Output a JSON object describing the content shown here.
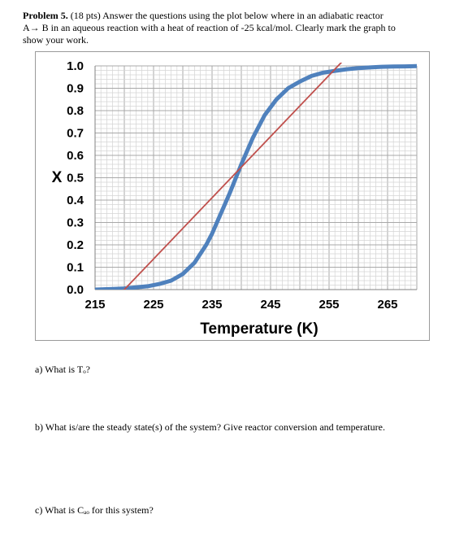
{
  "problem": {
    "heading": "Problem 5.",
    "points": "(18 pts)",
    "line1": "Answer the questions using the plot below where in an adiabatic reactor",
    "line2": "A→ B in an aqueous reaction with a heat of reaction of -25 kcal/mol.  Clearly mark the graph to",
    "line3": "show your work."
  },
  "questions": {
    "a": "a)   What is Tₒ?",
    "b": "b)   What is/are the steady state(s) of the system?  Give reactor conversion and temperature.",
    "c": "c)   What is Cₐₒ for this system?"
  },
  "chart_data": {
    "type": "line",
    "title": "",
    "xlabel": "Temperature (K)",
    "ylabel": "X",
    "xlim": [
      215,
      270
    ],
    "ylim": [
      0,
      1.0
    ],
    "xticks": [
      "215",
      "225",
      "235",
      "245",
      "255",
      "265"
    ],
    "yticks": [
      "0.0",
      "0.1",
      "0.2",
      "0.3",
      "0.4",
      "0.5",
      "0.6",
      "0.7",
      "0.8",
      "0.9",
      "1.0"
    ],
    "grid": true,
    "series": [
      {
        "color": "#4f81bd",
        "x": [
          215,
          218,
          220,
          222,
          224,
          226,
          228,
          230,
          232,
          234,
          235,
          236,
          238,
          240,
          242,
          244,
          246,
          248,
          250,
          252,
          254,
          256,
          258,
          260,
          262,
          264,
          266,
          268,
          270
        ],
        "y": [
          0.0,
          0.003,
          0.005,
          0.01,
          0.015,
          0.025,
          0.04,
          0.07,
          0.12,
          0.2,
          0.25,
          0.31,
          0.43,
          0.56,
          0.68,
          0.78,
          0.85,
          0.9,
          0.93,
          0.955,
          0.97,
          0.978,
          0.985,
          0.99,
          0.993,
          0.996,
          0.997,
          0.998,
          0.999
        ]
      },
      {
        "color": "#c0504d",
        "x": [
          220,
          258
        ],
        "y": [
          0.0,
          1.04
        ]
      }
    ]
  }
}
